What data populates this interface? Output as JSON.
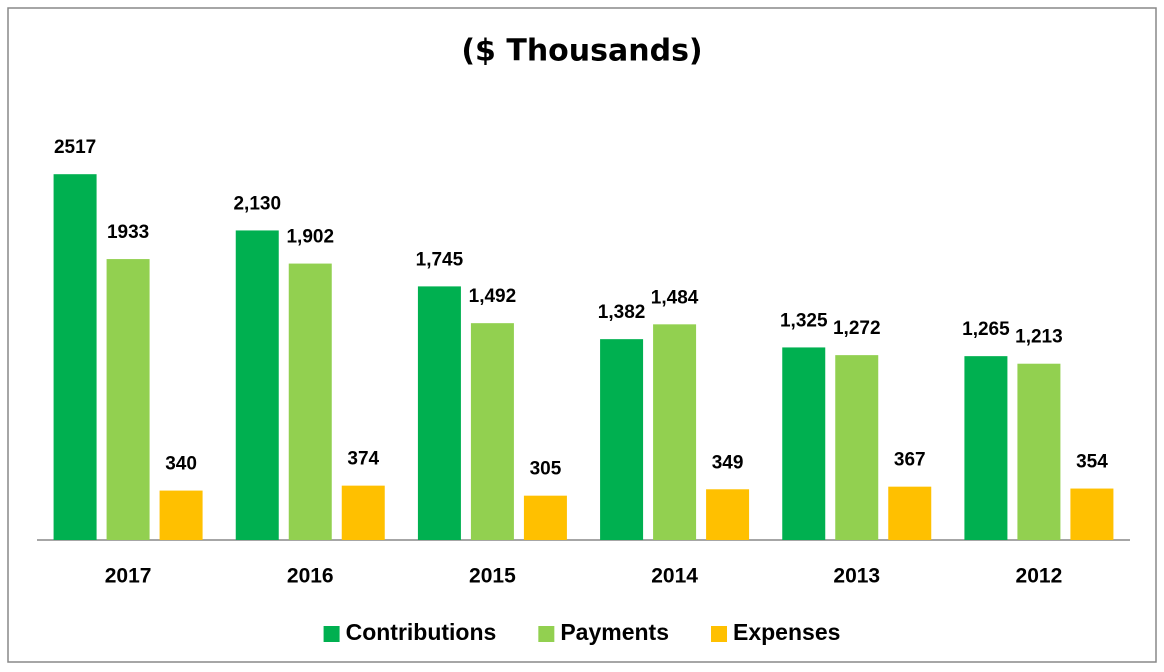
{
  "chart_data": {
    "type": "bar",
    "title": "($ Thousands)",
    "categories": [
      "2017",
      "2016",
      "2015",
      "2014",
      "2013",
      "2012"
    ],
    "series": [
      {
        "name": "Contributions",
        "color": "#00b050",
        "values": [
          2517,
          2130,
          1745,
          1382,
          1325,
          1265
        ],
        "value_labels": [
          "2517",
          "2,130",
          "1,745",
          "1,382",
          "1,325",
          "1,265"
        ]
      },
      {
        "name": "Payments",
        "color": "#92d050",
        "values": [
          1933,
          1902,
          1492,
          1484,
          1272,
          1213
        ],
        "value_labels": [
          "1933",
          "1,902",
          "1,492",
          "1,484",
          "1,272",
          "1,213"
        ]
      },
      {
        "name": "Expenses",
        "color": "#ffc000",
        "values": [
          340,
          374,
          305,
          349,
          367,
          354
        ],
        "value_labels": [
          "340",
          "374",
          "305",
          "349",
          "367",
          "354"
        ]
      }
    ],
    "ylim": [
      0,
      3000
    ],
    "legend": "bottom"
  }
}
